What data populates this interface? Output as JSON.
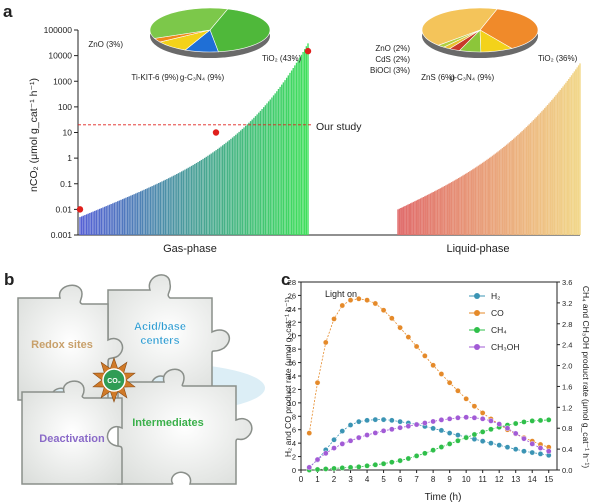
{
  "panels": {
    "a": "a",
    "b": "b",
    "c": "c"
  },
  "colors": {
    "gas_start": "#5560d6",
    "gas_end": "#3fe05a",
    "liquid_start": "#e06b6b",
    "liquid_end": "#f2d88a",
    "h2": "#3b94b4",
    "co": "#e58a2a",
    "ch4": "#2fbf4a",
    "ch3oh": "#a25bd6",
    "puzzle_fill": "#e9ebe9",
    "red_marker": "#e0201c"
  },
  "chart_data": [
    {
      "type": "bar",
      "panel": "a",
      "title": "",
      "ylabel": "nCO₂ (μmol g_cat⁻¹ h⁻¹)",
      "yscale": "log",
      "ylim": [
        0.001,
        100000
      ],
      "yticks": [
        "0.001",
        "0.01",
        "0.1",
        "1",
        "10",
        "100",
        "1000",
        "10000",
        "100000"
      ],
      "groups": [
        {
          "name": "Gas-phase",
          "count": 140,
          "range": [
            0.005,
            30000
          ],
          "highlighted_points": [
            0.01,
            10,
            15000
          ]
        },
        {
          "name": "Liquid-phase",
          "count": 130,
          "range": [
            0.01,
            5000
          ]
        }
      ],
      "reference_line": {
        "value": 20,
        "label": "Our study"
      },
      "pies": [
        {
          "group": "Gas-phase",
          "slices": [
            {
              "label": "TiO₂ (43%)",
              "value": 43,
              "color": "#4fb83a"
            },
            {
              "label": "g-C₃N₄ (9%)",
              "value": 9,
              "color": "#1f6fd6"
            },
            {
              "label": "Ti-KIT-6 (9%)",
              "value": 9,
              "color": "#f3d21a"
            },
            {
              "label": "ZnO (3%)",
              "value": 3,
              "color": "#f08a1a"
            },
            {
              "label": "",
              "value": 36,
              "color": "#7cc84a"
            }
          ]
        },
        {
          "group": "Liquid-phase",
          "slices": [
            {
              "label": "TiO₂ (36%)",
              "value": 36,
              "color": "#f08a2a"
            },
            {
              "label": "g-C₃N₄ (9%)",
              "value": 9,
              "color": "#f3d21a"
            },
            {
              "label": "ZnS (6%)",
              "value": 6,
              "color": "#8cc63a"
            },
            {
              "label": "BiOCl (3%)",
              "value": 3,
              "color": "#c83a2a"
            },
            {
              "label": "CdS (2%)",
              "value": 2,
              "color": "#e8c030"
            },
            {
              "label": "ZnO (2%)",
              "value": 2,
              "color": "#b0d040"
            },
            {
              "label": "",
              "value": 42,
              "color": "#f4c45a"
            }
          ]
        }
      ]
    },
    {
      "type": "line",
      "panel": "c",
      "xlabel": "Time (h)",
      "ylabel_left": "H₂ and CO product rate (μmol g_cat⁻¹ h⁻¹)",
      "ylabel_right": "CH₄ and CH₃OH product rate (μmol g_cat⁻¹ h⁻¹)",
      "xlim": [
        0,
        15.5
      ],
      "ylim_left": [
        0,
        28
      ],
      "ylim_right": [
        0,
        3.6
      ],
      "xticks": [
        0,
        1,
        2,
        3,
        4,
        5,
        6,
        7,
        8,
        9,
        10,
        11,
        12,
        13,
        14,
        15
      ],
      "yticks_left": [
        0,
        2,
        4,
        6,
        8,
        10,
        12,
        14,
        16,
        18,
        20,
        22,
        24,
        26,
        28
      ],
      "yticks_right": [
        "0.0",
        "0.4",
        "0.8",
        "1.2",
        "1.6",
        "2.0",
        "2.4",
        "2.8",
        "3.2",
        "3.6"
      ],
      "annotation": "Light on",
      "series": [
        {
          "name": "H₂",
          "axis": "left",
          "color": "#3b94b4",
          "x": [
            0.5,
            1,
            1.5,
            2,
            2.5,
            3,
            3.5,
            4,
            4.5,
            5,
            5.5,
            6,
            6.5,
            7,
            7.5,
            8,
            8.5,
            9,
            9.5,
            10,
            10.5,
            11,
            11.5,
            12,
            12.5,
            13,
            13.5,
            14,
            14.5,
            15
          ],
          "y": [
            0.4,
            1.5,
            3.0,
            4.5,
            5.8,
            6.7,
            7.2,
            7.4,
            7.5,
            7.5,
            7.4,
            7.2,
            7.0,
            6.8,
            6.5,
            6.2,
            5.9,
            5.5,
            5.2,
            4.9,
            4.6,
            4.3,
            4.0,
            3.7,
            3.4,
            3.1,
            2.8,
            2.6,
            2.4,
            2.2
          ]
        },
        {
          "name": "CO",
          "axis": "left",
          "color": "#e58a2a",
          "x": [
            0.5,
            1,
            1.5,
            2,
            2.5,
            3,
            3.5,
            4,
            4.5,
            5,
            5.5,
            6,
            6.5,
            7,
            7.5,
            8,
            8.5,
            9,
            9.5,
            10,
            10.5,
            11,
            11.5,
            12,
            12.5,
            13,
            13.5,
            14,
            14.5,
            15
          ],
          "y": [
            5.5,
            13.0,
            19.0,
            22.5,
            24.5,
            25.3,
            25.5,
            25.3,
            24.8,
            23.8,
            22.6,
            21.2,
            19.8,
            18.4,
            17.0,
            15.6,
            14.3,
            13.0,
            11.8,
            10.6,
            9.5,
            8.5,
            7.6,
            6.8,
            6.0,
            5.4,
            4.8,
            4.3,
            3.8,
            3.4
          ]
        },
        {
          "name": "CH₄",
          "axis": "right",
          "color": "#2fbf4a",
          "x": [
            0.5,
            1,
            1.5,
            2,
            2.5,
            3,
            3.5,
            4,
            4.5,
            5,
            5.5,
            6,
            6.5,
            7,
            7.5,
            8,
            8.5,
            9,
            9.5,
            10,
            10.5,
            11,
            11.5,
            12,
            12.5,
            13,
            13.5,
            14,
            14.5,
            15
          ],
          "y": [
            0.0,
            0.01,
            0.02,
            0.03,
            0.04,
            0.05,
            0.06,
            0.08,
            0.1,
            0.12,
            0.15,
            0.18,
            0.22,
            0.27,
            0.32,
            0.38,
            0.44,
            0.5,
            0.56,
            0.62,
            0.68,
            0.73,
            0.78,
            0.82,
            0.86,
            0.89,
            0.92,
            0.94,
            0.95,
            0.96
          ]
        },
        {
          "name": "CH₃OH",
          "axis": "right",
          "color": "#a25bd6",
          "x": [
            0.5,
            1,
            1.5,
            2,
            2.5,
            3,
            3.5,
            4,
            4.5,
            5,
            5.5,
            6,
            6.5,
            7,
            7.5,
            8,
            8.5,
            9,
            9.5,
            10,
            10.5,
            11,
            11.5,
            12,
            12.5,
            13,
            13.5,
            14,
            14.5,
            15
          ],
          "y": [
            0.05,
            0.2,
            0.32,
            0.42,
            0.5,
            0.56,
            0.62,
            0.67,
            0.71,
            0.75,
            0.78,
            0.81,
            0.84,
            0.87,
            0.9,
            0.93,
            0.96,
            0.98,
            1.0,
            1.01,
            1.0,
            0.98,
            0.94,
            0.88,
            0.8,
            0.7,
            0.6,
            0.5,
            0.42,
            0.36
          ]
        }
      ],
      "legend_position": "top-right"
    }
  ],
  "diagram_b": {
    "pieces": [
      {
        "label": "Acid/base centers",
        "color": "#2a9ad0"
      },
      {
        "label": "Redox sites",
        "color": "#c8a06a"
      },
      {
        "label": "Intermediates",
        "color": "#3ab04a"
      },
      {
        "label": "Deactivation",
        "color": "#8a6ac8"
      }
    ],
    "center_label": "CO₂"
  }
}
